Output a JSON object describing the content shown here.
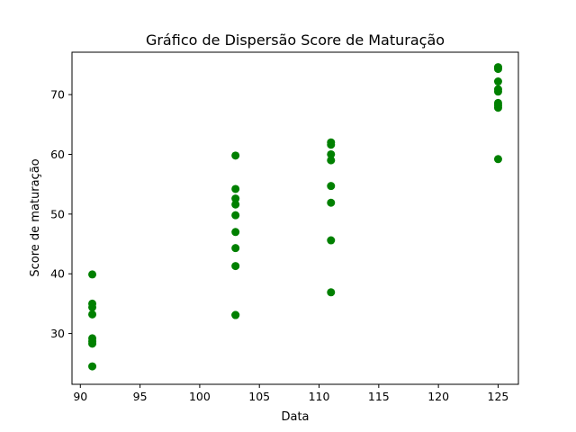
{
  "chart_data": {
    "type": "scatter",
    "title": "Gráfico de Dispersão Score de Maturação",
    "xlabel": "Data",
    "ylabel": "Score de maturação",
    "xlim": [
      89.3,
      126.7
    ],
    "ylim": [
      21.5,
      77.1
    ],
    "xticks": [
      90,
      95,
      100,
      105,
      110,
      115,
      120,
      125
    ],
    "yticks": [
      30,
      40,
      50,
      60,
      70
    ],
    "grid": false,
    "legend": "none",
    "marker_color": "#008000",
    "series": [
      {
        "x": [
          91,
          91,
          91,
          91,
          91,
          91,
          91,
          91,
          103,
          103,
          103,
          103,
          103,
          103,
          103,
          103,
          103,
          103,
          111,
          111,
          111,
          111,
          111,
          111,
          111,
          111,
          125,
          125,
          125,
          125,
          125,
          125,
          125,
          125,
          125
        ],
        "y": [
          39.9,
          35.0,
          34.4,
          33.2,
          29.2,
          28.7,
          28.3,
          24.5,
          59.8,
          54.2,
          52.6,
          51.6,
          49.8,
          47.0,
          44.3,
          41.3,
          33.1,
          33.1,
          62.0,
          61.6,
          60.0,
          59.0,
          54.7,
          51.9,
          45.6,
          36.9,
          74.6,
          74.3,
          72.2,
          70.9,
          70.5,
          68.6,
          68.2,
          67.8,
          59.2
        ]
      }
    ]
  }
}
